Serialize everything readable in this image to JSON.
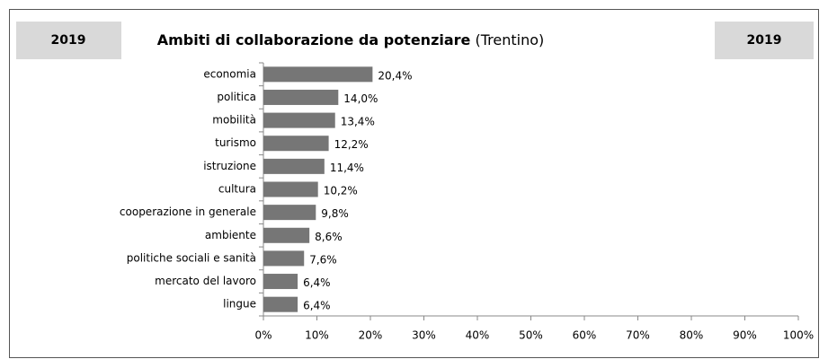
{
  "chart_data": {
    "type": "bar",
    "orientation": "horizontal",
    "title": [
      "Ambiti di collaborazione  da potenziare",
      "(Trentino)"
    ],
    "badges": [
      "2019",
      "2019"
    ],
    "categories": [
      "economia",
      "politica",
      "mobilità",
      "turismo",
      "istruzione",
      "cultura",
      "cooperazione in generale",
      "ambiente",
      "politiche sociali e sanità",
      "mercato del lavoro",
      "lingue"
    ],
    "values": [
      20.4,
      14.0,
      13.4,
      12.2,
      11.4,
      10.2,
      9.8,
      8.6,
      7.6,
      6.4,
      6.4
    ],
    "value_labels": [
      "20,4%",
      "14,0%",
      "13,4%",
      "12,2%",
      "11,4%",
      "10,2%",
      "9,8%",
      "8,6%",
      "7,6%",
      "6,4%",
      "6,4%"
    ],
    "color": "#767676",
    "xlim": [
      0,
      100
    ],
    "xticks": [
      {
        "value": 0,
        "label": "0%"
      },
      {
        "value": 10,
        "label": "10%"
      },
      {
        "value": 20,
        "label": "20%"
      },
      {
        "value": 30,
        "label": "30%"
      },
      {
        "value": 40,
        "label": "40%"
      },
      {
        "value": 50,
        "label": "50%"
      },
      {
        "value": 60,
        "label": "60%"
      },
      {
        "value": 70,
        "label": "70%"
      },
      {
        "value": 80,
        "label": "80%"
      },
      {
        "value": 90,
        "label": "90%"
      },
      {
        "value": 100,
        "label": "100%"
      }
    ],
    "grid": false
  }
}
